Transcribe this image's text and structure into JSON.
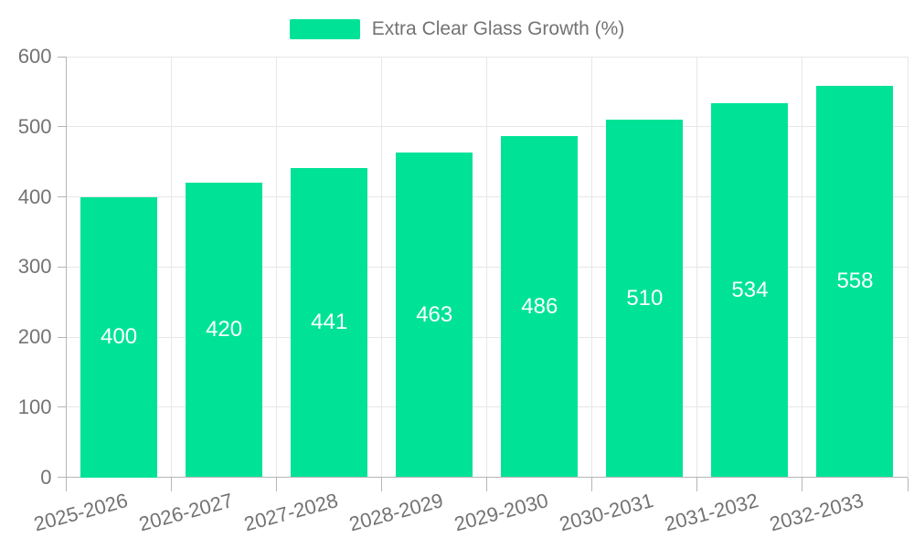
{
  "legend": {
    "label": "Extra Clear Glass Growth (%)"
  },
  "colors": {
    "bar": "#00E396",
    "grid": "#e7e7e7",
    "axis": "#b6b6b6",
    "tick": "#b6b6b6",
    "label_text": "#737373",
    "value_text": "#ffffff",
    "background": "#ffffff"
  },
  "chart_data": {
    "type": "bar",
    "title": "",
    "legend_entries": [
      "Extra Clear Glass Growth (%)"
    ],
    "legend_position": "top",
    "categories": [
      "2025-2026",
      "2026-2027",
      "2027-2028",
      "2028-2029",
      "2029-2030",
      "2030-2031",
      "2031-2032",
      "2032-2033"
    ],
    "series": [
      {
        "name": "Extra Clear Glass Growth (%)",
        "values": [
          400,
          420,
          441,
          463,
          486,
          510,
          534,
          558
        ]
      }
    ],
    "xlabel": "",
    "ylabel": "",
    "ylim": [
      0,
      600
    ],
    "ytick_step": 100,
    "yticks": [
      0,
      100,
      200,
      300,
      400,
      500,
      600
    ],
    "grid": true,
    "x_label_rotation": -15,
    "data_labels": "inside-center-white"
  }
}
